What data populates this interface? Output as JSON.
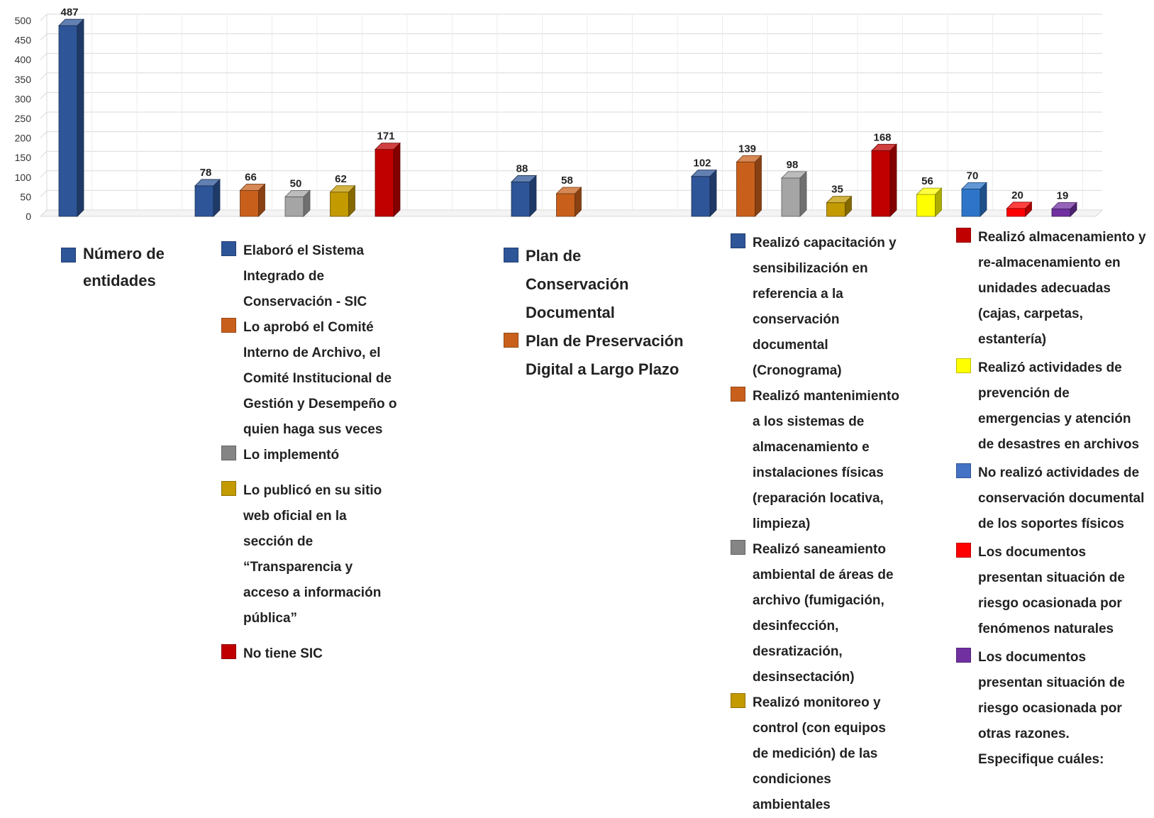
{
  "chart_data": {
    "type": "bar",
    "y_axis": {
      "min": 0,
      "max": 500,
      "step": 50,
      "ticks": [
        "0",
        "50",
        "100",
        "150",
        "200",
        "250",
        "300",
        "350",
        "400",
        "450",
        "500"
      ]
    },
    "grid": true,
    "groups": [
      {
        "name": "g1",
        "bars": [
          {
            "label": "Número de entidades",
            "value": 487,
            "value_label": "487",
            "color": "#2E5597"
          }
        ]
      },
      {
        "name": "g2",
        "bars": [
          {
            "label": "Elaboró el Sistema Integrado de Conservación - SIC",
            "value": 78,
            "value_label": "78",
            "color": "#2E5597"
          },
          {
            "label": "Lo aprobó el Comité Interno de Archivo, el Comité Institucional de Gestión y Desempeño o quien haga sus veces",
            "value": 66,
            "value_label": "66",
            "color": "#C8601C"
          },
          {
            "label": "Lo implementó",
            "value": 50,
            "value_label": "50",
            "color": "#A5A5A5"
          },
          {
            "label": "Lo publicó en su sitio web oficial en la sección de “Transparencia y acceso a información pública”",
            "value": 62,
            "value_label": "62",
            "color": "#C39A00"
          },
          {
            "label": "No tiene SIC",
            "value": 171,
            "value_label": "171",
            "color": "#C00000"
          }
        ]
      },
      {
        "name": "g3",
        "bars": [
          {
            "label": "Plan de Conservación Documental",
            "value": 88,
            "value_label": "88",
            "color": "#2E5597"
          },
          {
            "label": "Plan de Preservación Digital a Largo Plazo",
            "value": 58,
            "value_label": "58",
            "color": "#C8601C"
          }
        ]
      },
      {
        "name": "g4",
        "bars": [
          {
            "label": "Realizó capacitación y sensibilización en referencia a la conservación documental (Cronograma)",
            "value": 102,
            "value_label": "102",
            "color": "#2E5597"
          },
          {
            "label": "Realizó mantenimiento a los sistemas de almacenamiento e instalaciones físicas (reparación locativa, limpieza)",
            "value": 139,
            "value_label": "139",
            "color": "#C8601C"
          },
          {
            "label": "Realizó saneamiento ambiental de áreas de archivo (fumigación, desinfección, desratización, desinsectación)",
            "value": 98,
            "value_label": "98",
            "color": "#A5A5A5"
          },
          {
            "label": "Realizó monitoreo y control (con equipos de medición) de las condiciones ambientales",
            "value": 35,
            "value_label": "35",
            "color": "#C39A00"
          },
          {
            "label": "Realizó almacenamiento y re-almacenamiento en unidades adecuadas (cajas, carpetas, estantería)",
            "value": 168,
            "value_label": "168",
            "color": "#C00000"
          },
          {
            "label": "Realizó actividades de prevención de emergencias y atención de desastres en archivos",
            "value": 56,
            "value_label": "56",
            "color": "#FFFF00"
          },
          {
            "label": "No realizó actividades de conservación documental de los soportes físicos",
            "value": 70,
            "value_label": "70",
            "color": "#2E75C9"
          },
          {
            "label": "Los documentos presentan situación de riesgo ocasionada por fenómenos naturales",
            "value": 20,
            "value_label": "20",
            "color": "#FF0000"
          },
          {
            "label": "Los documentos presentan situación de riesgo ocasionada por otras razones. Especifique cuáles:",
            "value": 19,
            "value_label": "19",
            "color": "#7030A0"
          }
        ]
      }
    ]
  },
  "legend": {
    "g1": [
      {
        "text": "Número de entidades",
        "color": "#2E5597"
      }
    ],
    "g2": [
      {
        "text": "Elaboró el Sistema Integrado de Conservación - SIC",
        "color": "#2E5597"
      },
      {
        "text": "Lo aprobó el Comité Interno de Archivo, el Comité Institucional de Gestión y Desempeño o quien haga sus veces",
        "color": "#C8601C"
      },
      {
        "text": "Lo implementó",
        "color": "#858585"
      },
      {
        "text": "Lo publicó en su sitio web oficial en la sección de “Transparencia y acceso a información pública”",
        "color": "#C39A00"
      },
      {
        "text": "No tiene SIC",
        "color": "#C00000"
      }
    ],
    "g3": [
      {
        "text": "Plan de Conservación Documental",
        "color": "#2E5597"
      },
      {
        "text": "Plan de Preservación Digital a Largo Plazo",
        "color": "#C8601C"
      }
    ],
    "g4a": [
      {
        "text": "Realizó capacitación y sensibilización en referencia a la conservación documental (Cronograma)",
        "color": "#2E5597"
      },
      {
        "text": "Realizó mantenimiento a los sistemas de almacenamiento e instalaciones físicas (reparación locativa, limpieza)",
        "color": "#C8601C"
      },
      {
        "text": "Realizó saneamiento ambiental de áreas de archivo (fumigación, desinfección, desratización, desinsectación)",
        "color": "#858585"
      },
      {
        "text": "Realizó monitoreo y control (con equipos de medición) de las condiciones ambientales",
        "color": "#C39A00"
      }
    ],
    "g4b": [
      {
        "text": "Realizó almacenamiento y re-almacenamiento en unidades adecuadas (cajas, carpetas, estantería)",
        "color": "#C00000"
      },
      {
        "text": "Realizó actividades de prevención de emergencias y atención de desastres en archivos",
        "color": "#FFFF00"
      },
      {
        "text": "No realizó actividades de conservación documental de los soportes físicos",
        "color": "#4472C4"
      },
      {
        "text": "Los documentos presentan situación de riesgo ocasionada por fenómenos naturales",
        "color": "#FF0000"
      },
      {
        "text": "Los documentos presentan situación de riesgo ocasionada por otras razones. Especifique cuáles:",
        "color": "#7030A0"
      }
    ]
  }
}
